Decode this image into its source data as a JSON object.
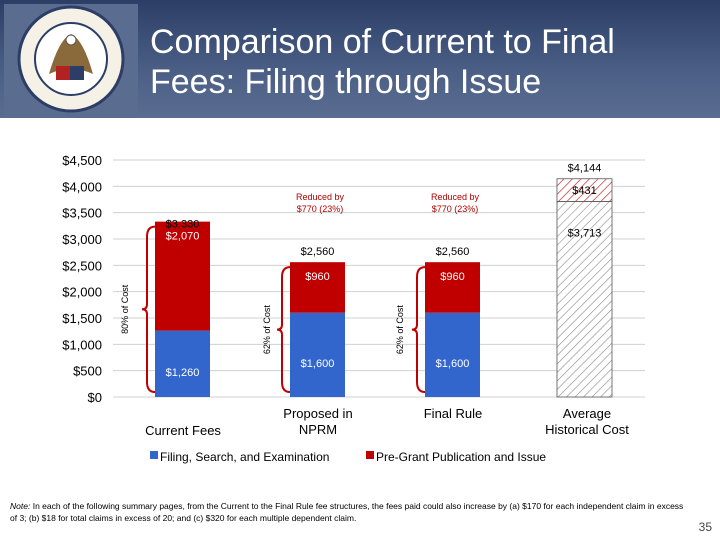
{
  "header": {
    "title_line1": "Comparison of Current to Final",
    "title_line2": "Fees: Filing through Issue",
    "seal_icon": "uspto-seal-icon"
  },
  "colors": {
    "header_bg": "#2c3e66",
    "blue": "#3366cc",
    "red": "#c00000",
    "hatch": "#888888"
  },
  "chart_data": {
    "type": "bar",
    "stacked": true,
    "categories": [
      "Current Fees",
      "Proposed in NPRM",
      "Final Rule",
      "Average Historical Cost"
    ],
    "ylim": [
      0,
      4500
    ],
    "yticks": [
      "$0",
      "$500",
      "$1,000",
      "$1,500",
      "$2,000",
      "$2,500",
      "$3,000",
      "$3,500",
      "$4,000",
      "$4,500"
    ],
    "grid": true,
    "legend_position": "bottom",
    "series": [
      {
        "name": "Filing, Search, and Examination",
        "values": [
          1260,
          1600,
          1600,
          3713
        ],
        "labels": [
          "$1,260",
          "$1,600",
          "$1,600",
          "$3,713"
        ]
      },
      {
        "name": "Pre-Grant Publication and Issue",
        "values": [
          2070,
          960,
          960,
          431
        ],
        "labels": [
          "$2,070",
          "$960",
          "$960",
          "$431"
        ]
      }
    ],
    "totals": [
      {
        "index": 0,
        "value": 3330,
        "label": "$3,330"
      },
      {
        "index": 1,
        "value": 2560,
        "label": "$2,560"
      },
      {
        "index": 2,
        "value": 2560,
        "label": "$2,560"
      },
      {
        "index": 3,
        "value": 4144,
        "label": "$4,144"
      }
    ],
    "annotations": {
      "reduced_nprm": [
        "Reduced by",
        "$770 (23%)"
      ],
      "reduced_final": [
        "Reduced by",
        "$770 (23%)"
      ],
      "pct_current": "80% of Cost",
      "pct_nprm": "62% of Cost",
      "pct_final": "62% of Cost"
    }
  },
  "note": {
    "label": "Note:",
    "text": "In each of the following summary pages, from the Current to the Final Rule fee structures, the fees paid could also increase by (a) $170 for each independent claim in excess of 3; (b) $18 for total claims in excess of 20; and (c) $320 for each multiple dependent claim."
  },
  "page_number": "35"
}
